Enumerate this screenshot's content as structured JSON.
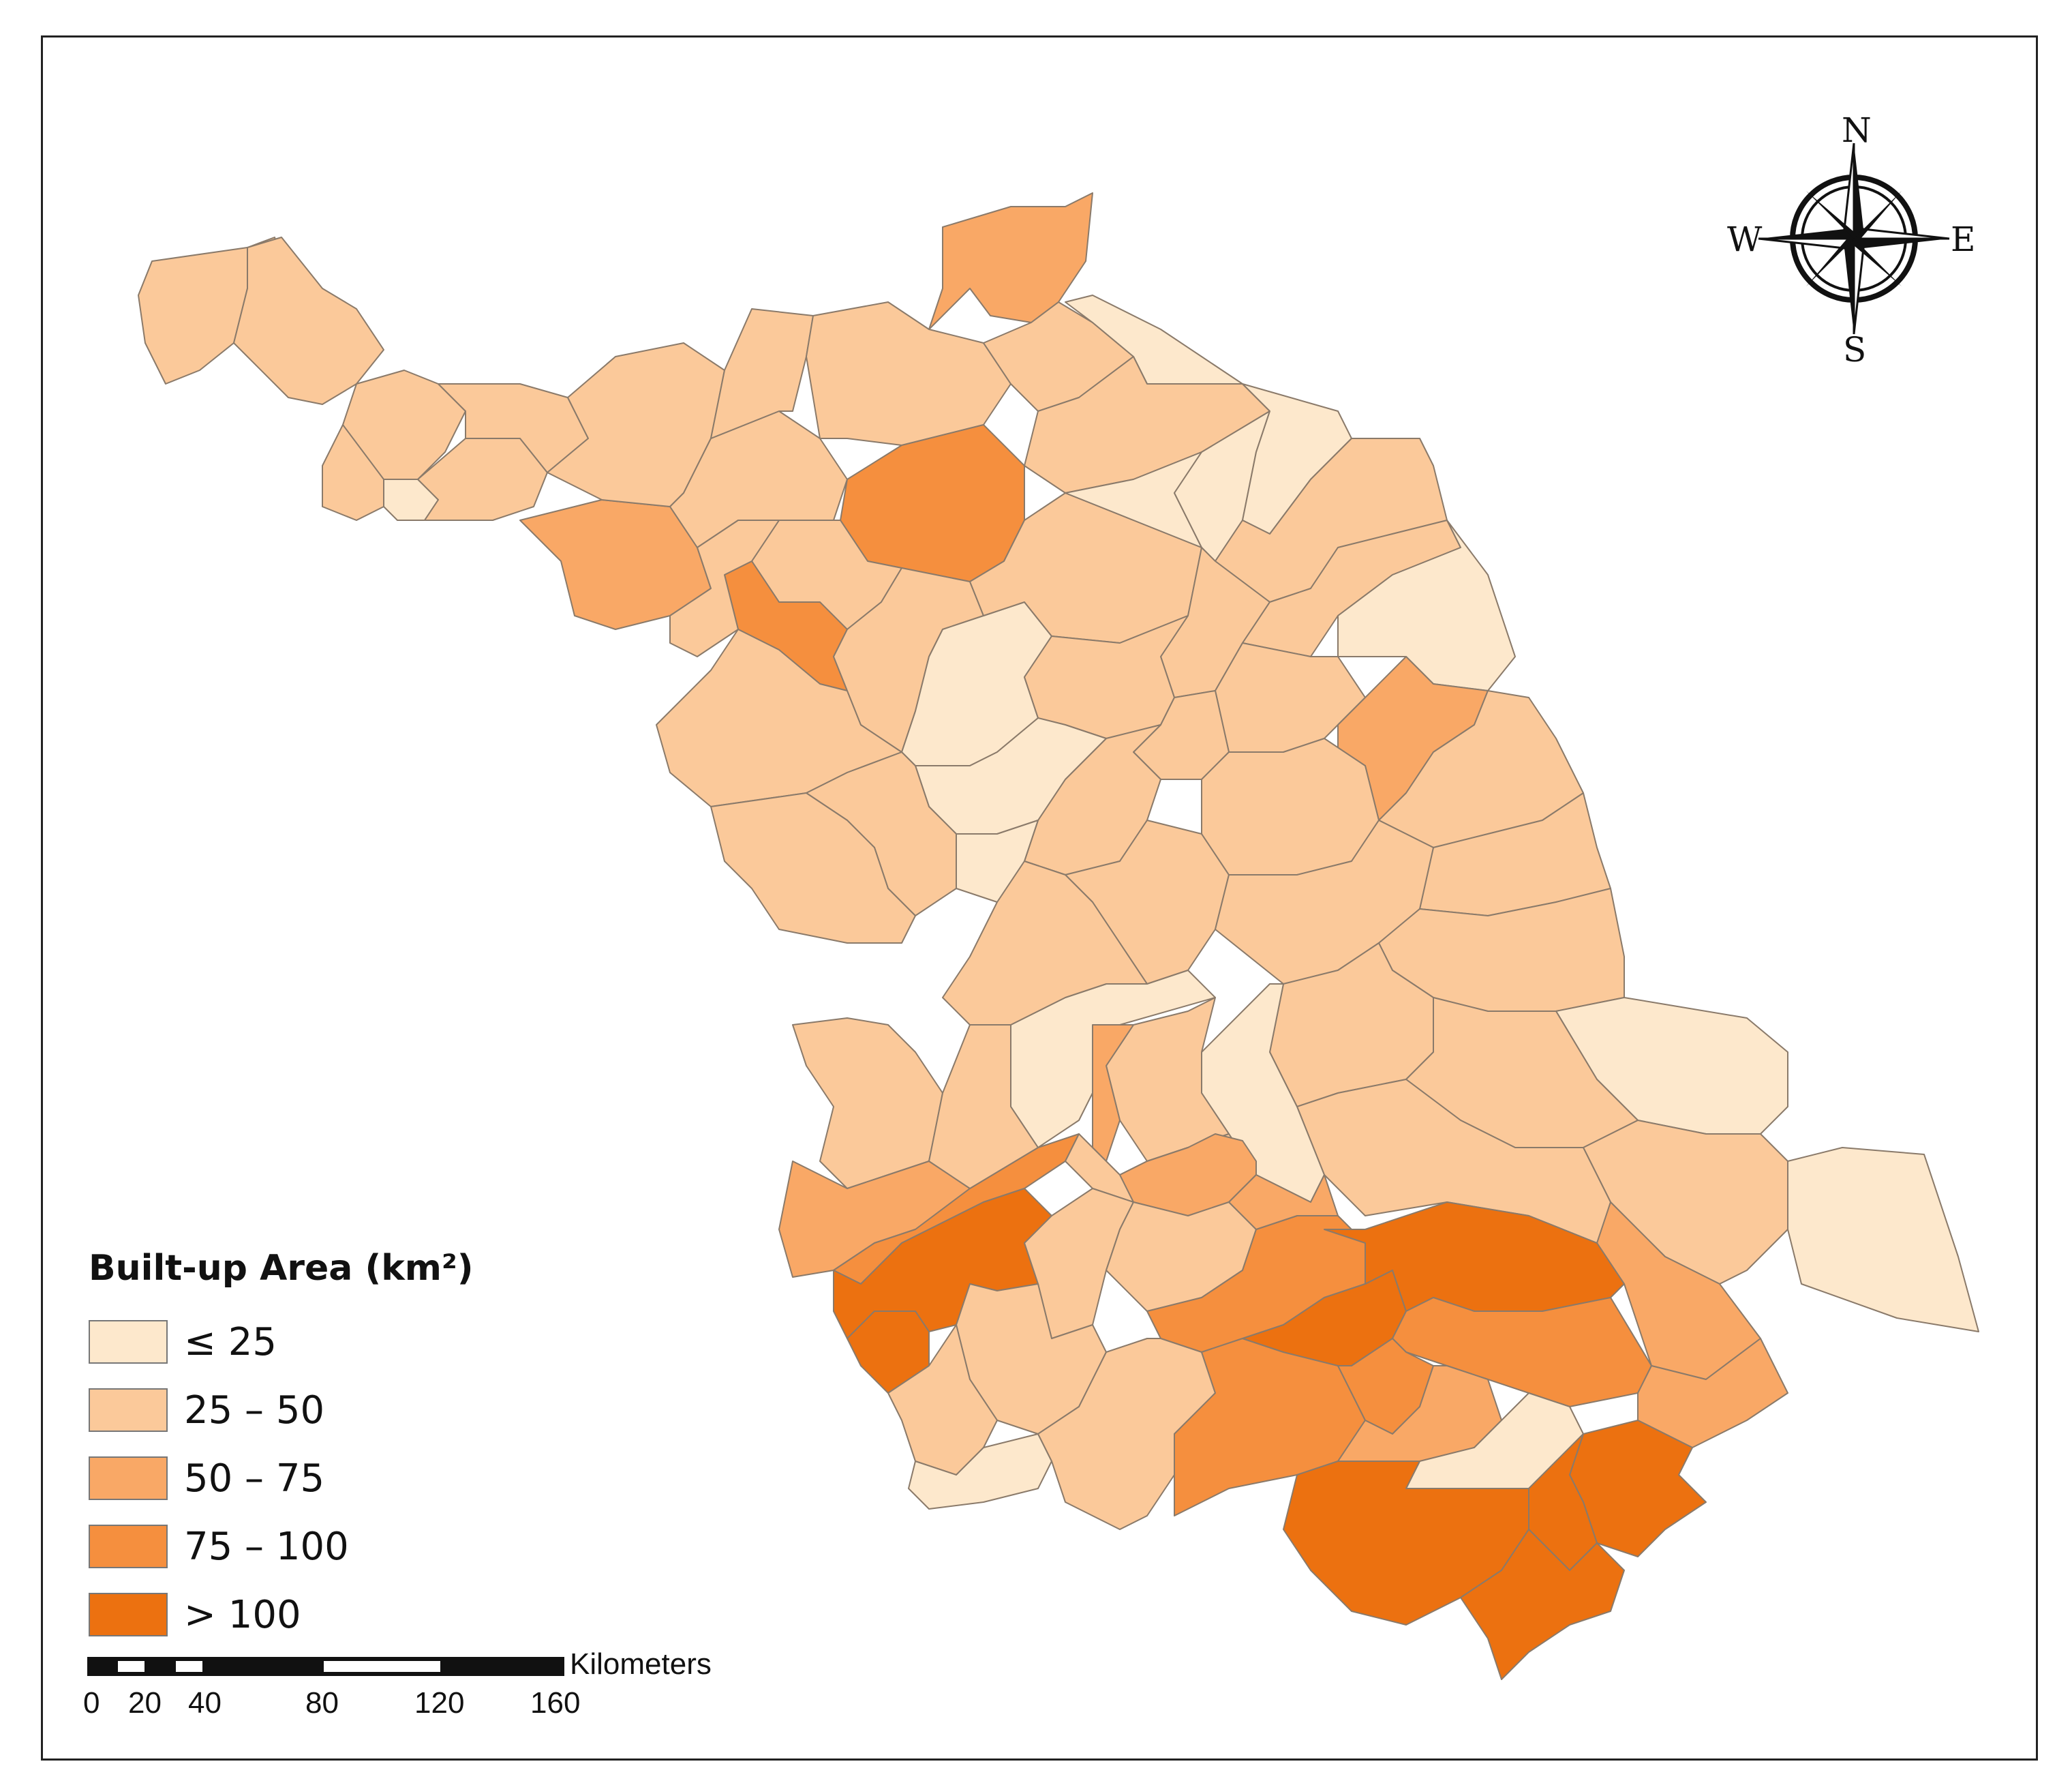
{
  "legend": {
    "title": "Built-up Area  (km²)",
    "classes": [
      {
        "label": "≤ 25",
        "color": "#fde8cc"
      },
      {
        "label": "25 – 50",
        "color": "#fbc99a"
      },
      {
        "label": "50 – 75",
        "color": "#f9a866"
      },
      {
        "label": "75 – 100",
        "color": "#f58f3e"
      },
      {
        "label": "> 100",
        "color": "#ec7110"
      }
    ]
  },
  "scale_bar": {
    "unit": "Kilometers",
    "ticks": [
      "0",
      "20",
      "40",
      "80",
      "120",
      "160"
    ]
  },
  "compass": {
    "north": "N",
    "south": "S",
    "east": "E",
    "west": "W"
  }
}
